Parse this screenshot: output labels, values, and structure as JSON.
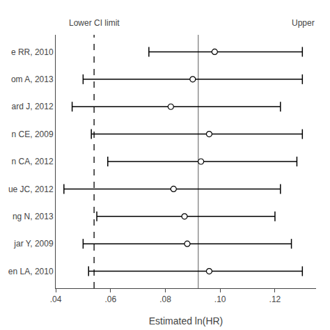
{
  "chart_data": {
    "type": "forest",
    "categories": [
      "e RR, 2010",
      "om A, 2013",
      "ard J, 2012",
      "n CE, 2009",
      "n CA, 2012",
      "ue JC, 2012",
      "ng N, 2013",
      "jar Y, 2009",
      "en LA, 2010"
    ],
    "values": [
      0.098,
      0.09,
      0.082,
      0.096,
      0.093,
      0.083,
      0.087,
      0.088,
      0.096
    ],
    "lower_ci": [
      0.074,
      0.05,
      0.046,
      0.053,
      0.059,
      0.043,
      0.055,
      0.05,
      0.052
    ],
    "upper_ci": [
      0.13,
      0.13,
      0.122,
      0.13,
      0.128,
      0.122,
      0.12,
      0.126,
      0.13
    ],
    "color": "#000000",
    "marker": "open",
    "xlabel": "Estimated ln(HR)",
    "xlim": [
      0.04,
      0.135
    ],
    "xticks": [
      {
        "value": 0.04,
        "label": ".04"
      },
      {
        "value": 0.06,
        "label": ".06"
      },
      {
        "value": 0.08,
        "label": ".08"
      },
      {
        "value": 0.1,
        "label": ".10"
      },
      {
        "value": 0.12,
        "label": ".12"
      }
    ],
    "reference_lines": [
      {
        "value": 0.054,
        "line_style": "dashed",
        "color": "#000000",
        "label": "Lower CI limit"
      },
      {
        "value": 0.092,
        "line_style": "solid",
        "color": "#808080"
      }
    ],
    "annotations": [
      {
        "text": "Upper"
      }
    ],
    "grid": false
  }
}
